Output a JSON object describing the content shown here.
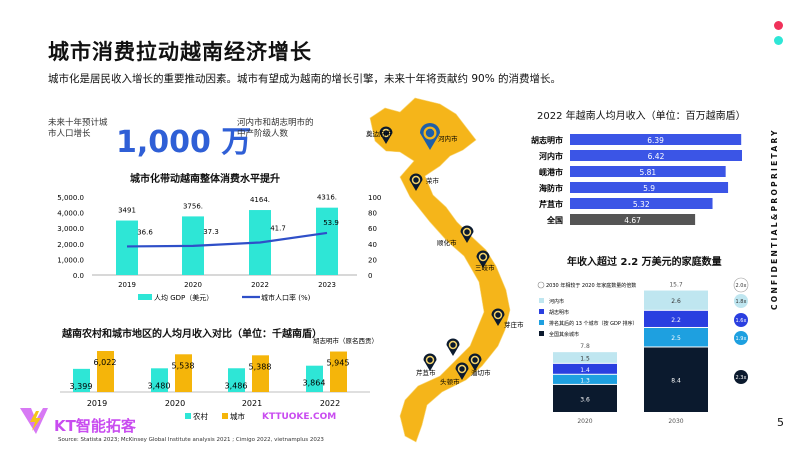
{
  "header": {
    "title": "城市消费拉动越南经济增长",
    "subtitle": "城市化是居民收入增长的重要推动因素。城市有望成为越南的增长引擎，未来十年将贡献约 90% 的消费增长。"
  },
  "kpi": {
    "label": "未来十年预计城市人口增长",
    "value": "1,000 万",
    "desc": "河内市和胡志明市的中产阶级人数"
  },
  "side": {
    "confidential": "CONFIDENTIAL&PROPRIETARY",
    "page": "5"
  },
  "colors": {
    "pink": "#f0325a",
    "cyan": "#2ee6d6",
    "blue": "#2f5fd6",
    "yellow": "#f5b50a",
    "map": "#f5b51a",
    "navy": "#0b1a2e"
  },
  "map": {
    "cities": [
      "奠边府市",
      "河内市",
      "荣市",
      "顺化市",
      "三岐市",
      "芽庄市",
      "胡志明市（原名西贡）",
      "潘切市",
      "头顿市",
      "芹苴市"
    ]
  },
  "source": "Source: Statista 2023; McKinsey Global Institute analysis 2021 ; Cimigo 2022, vietnamplus 2023",
  "watermark": {
    "brand": "KT智能拓客",
    "url": "KTTUOKE.COM"
  },
  "chart_data": [
    {
      "type": "bar+line",
      "title": "城市化带动越南整体消费水平提升",
      "categories": [
        "2019",
        "2020",
        "2022",
        "2023"
      ],
      "series": [
        {
          "name": "人均 GDP（美元）",
          "type": "bar",
          "values": [
            3491,
            3756,
            4164,
            4316
          ],
          "labels": [
            "3491",
            "3756.",
            "4164.",
            "4316."
          ]
        },
        {
          "name": "城市人口率 (%)",
          "type": "line",
          "values": [
            36.6,
            37.3,
            41.7,
            53.9
          ]
        }
      ],
      "ylim": [
        0,
        5000
      ],
      "yticks": [
        "0.0",
        "1,000.0",
        "2,000.0",
        "3,000.0",
        "4,000.0",
        "5,000.0"
      ],
      "y2lim": [
        0,
        100
      ],
      "y2ticks": [
        "0",
        "20",
        "40",
        "60",
        "80",
        "100"
      ]
    },
    {
      "type": "bar",
      "title": "越南农村和城市地区的人均月收入对比（单位：千越南盾）",
      "categories": [
        "2019",
        "2020",
        "2021",
        "2022"
      ],
      "series": [
        {
          "name": "农村",
          "values": [
            3399,
            3480,
            3486,
            3864
          ],
          "labels": [
            "3,399",
            "3,480",
            "3,486",
            "3,864"
          ]
        },
        {
          "name": "城市",
          "values": [
            6022,
            5538,
            5388,
            5945
          ],
          "labels": [
            "6,022",
            "5,538",
            "5,388",
            "5,945"
          ]
        }
      ]
    },
    {
      "type": "bar",
      "orientation": "horizontal",
      "title": "2022 年越南人均月收入（单位：百万越南盾）",
      "categories": [
        "胡志明市",
        "河内市",
        "岘港市",
        "海防市",
        "芹苴市",
        "全国"
      ],
      "values": [
        6.39,
        6.42,
        5.81,
        5.9,
        5.32,
        4.67
      ],
      "labels": [
        "6.39",
        "6.42",
        "5.81",
        "5.9",
        "5.32",
        "4.67"
      ]
    },
    {
      "type": "stacked-bar",
      "title": "年收入超过 2.2 万美元的家庭数量",
      "categories": [
        "2020",
        "2030"
      ],
      "legend_note": "2030 年相较于 2020 年家庭数量的倍数",
      "series": [
        {
          "name": "全国其余城市",
          "values": [
            3.6,
            8.4
          ],
          "multiplier": "2.3x",
          "color": "#0b1a2e"
        },
        {
          "name": "排名其后的 13 个城市（按 GDP 排序）",
          "values": [
            1.3,
            2.5
          ],
          "multiplier": "1.9x",
          "color": "#1ea0e0"
        },
        {
          "name": "胡志明市",
          "values": [
            1.4,
            2.2
          ],
          "multiplier": "1.6x",
          "color": "#2a3fe0"
        },
        {
          "name": "河内市",
          "values": [
            1.5,
            2.6
          ],
          "multiplier": "1.8x",
          "color": "#bfe6f0"
        }
      ],
      "totals": [
        "7.8",
        "15.7"
      ],
      "total_multiplier": "2.0x"
    }
  ]
}
